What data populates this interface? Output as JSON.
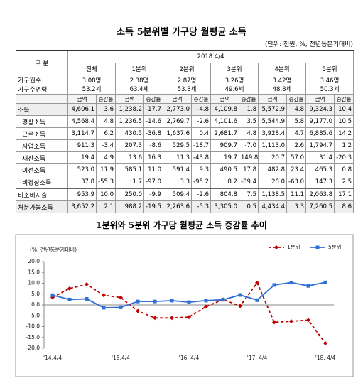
{
  "title": "소득 5분위별 가구당 월평균 소득",
  "unit": "(단위: 천원, %, 전년동분기대비)",
  "table": {
    "corner": "구 분",
    "period": "2018 4/4",
    "groups": [
      "전체",
      "1분위",
      "2분위",
      "3분위",
      "4분위",
      "5분위"
    ],
    "household": {
      "labels": [
        "가구원수",
        "가구주연령"
      ],
      "cells": [
        [
          "3.08명",
          "53.2세"
        ],
        [
          "2.38명",
          "63.4세"
        ],
        [
          "2.87명",
          "53.8세"
        ],
        [
          "3.26명",
          "49.6세"
        ],
        [
          "3.42명",
          "48.8세"
        ],
        [
          "3.46명",
          "50.3세"
        ]
      ]
    },
    "sub": [
      "금액",
      "증감률",
      "금액",
      "증감률",
      "금액",
      "증감률",
      "금액",
      "증감률",
      "금액",
      "증감률",
      "금액",
      "증감률"
    ],
    "rows": [
      [
        "소득",
        "4,606.1",
        "3.6",
        "1,238.2",
        "-17.7",
        "2,773.0",
        "-4.8",
        "4,109.8",
        "1.8",
        "5,572.9",
        "4.8",
        "9,324.3",
        "10.4"
      ],
      [
        "경상소득",
        "4,568.4",
        "4.8",
        "1,236.5",
        "-14.6",
        "2,769.7",
        "-2.6",
        "4,101.6",
        "3.5",
        "5,544.9",
        "5.8",
        "9,177.0",
        "10.5"
      ],
      [
        "근로소득",
        "3,114.7",
        "6.2",
        "430.5",
        "-36.8",
        "1,637.6",
        "0.4",
        "2,681.7",
        "4.8",
        "3,928.4",
        "4.7",
        "6,885.6",
        "14.2"
      ],
      [
        "사업소득",
        "911.3",
        "-3.4",
        "207.3",
        "-8.6",
        "529.5",
        "-18.7",
        "909.7",
        "-7.0",
        "1,113.0",
        "2.6",
        "1,794.7",
        "1.2"
      ],
      [
        "재산소득",
        "19.4",
        "4.9",
        "13.6",
        "16.3",
        "11.3",
        "-43.8",
        "19.7",
        "149.8",
        "20.7",
        "57.0",
        "31.4",
        "-20.3"
      ],
      [
        "이전소득",
        "523.0",
        "11.9",
        "585.1",
        "11.0",
        "591.4",
        "9.3",
        "490.5",
        "17.8",
        "482.8",
        "23.4",
        "465.3",
        "0.8"
      ],
      [
        "비경상소득",
        "37.8",
        "-55.3",
        "1.7",
        "-97.0",
        "3.3",
        "-95.2",
        "8.2",
        "-89.4",
        "28.0",
        "-63.0",
        "147.3",
        "2.5"
      ],
      [
        "비소비지출",
        "953.9",
        "10.0",
        "250.0",
        "-9.9",
        "509.4",
        "-2.6",
        "804.8",
        "7.5",
        "1,138.5",
        "11.1",
        "2,063.8",
        "17.1"
      ],
      [
        "처분가능소득",
        "3,652.2",
        "2.1",
        "988.2",
        "-19.5",
        "2,263.6",
        "-5.3",
        "3,305.0",
        "0.5",
        "4,434.4",
        "3.3",
        "7,260.5",
        "8.6"
      ]
    ]
  },
  "chart_data": {
    "type": "line",
    "title": "1분위와 5분위 가구당 월평균 소득 증감률 추이",
    "y_label": "(%, 전년동분기대비)",
    "categories": [
      "'14.4/4",
      null,
      null,
      null,
      "'15.4/4",
      null,
      null,
      null,
      "'16. 4/4",
      null,
      null,
      null,
      "'17. 4/4",
      null,
      null,
      null,
      "'18. 4/4"
    ],
    "series": [
      {
        "name": "1분위",
        "color": "#c00000",
        "dashed": true,
        "marker": "diamond",
        "values": [
          3.5,
          7.6,
          9.5,
          4.5,
          3.4,
          -2.8,
          -6.0,
          -6.0,
          -5.6,
          -0.8,
          2.5,
          -0.5,
          10.2,
          -8.0,
          -7.6,
          -7.0,
          -17.7
        ]
      },
      {
        "name": "5분위",
        "color": "#2f6fd6",
        "dashed": false,
        "marker": "square",
        "values": [
          4.5,
          2.5,
          2.8,
          -1.3,
          -1.1,
          1.6,
          1.6,
          2.0,
          1.3,
          2.0,
          2.4,
          4.6,
          2.2,
          9.2,
          10.3,
          8.8,
          10.4
        ]
      }
    ],
    "ylim": [
      -20,
      20
    ],
    "yticks": [
      {
        "value": 20,
        "label": "20.0"
      },
      {
        "value": 15,
        "label": "15.0"
      },
      {
        "value": 10,
        "label": "10.0"
      },
      {
        "value": 5,
        "label": "5.0"
      },
      {
        "value": 0,
        "label": "0.0"
      },
      {
        "value": -5,
        "label": "-5.0"
      },
      {
        "value": -10,
        "label": "-10.0"
      },
      {
        "value": -15,
        "label": "-15.0"
      },
      {
        "value": -20,
        "label": "-20.0"
      }
    ],
    "grid": false,
    "legend": "upper right"
  }
}
